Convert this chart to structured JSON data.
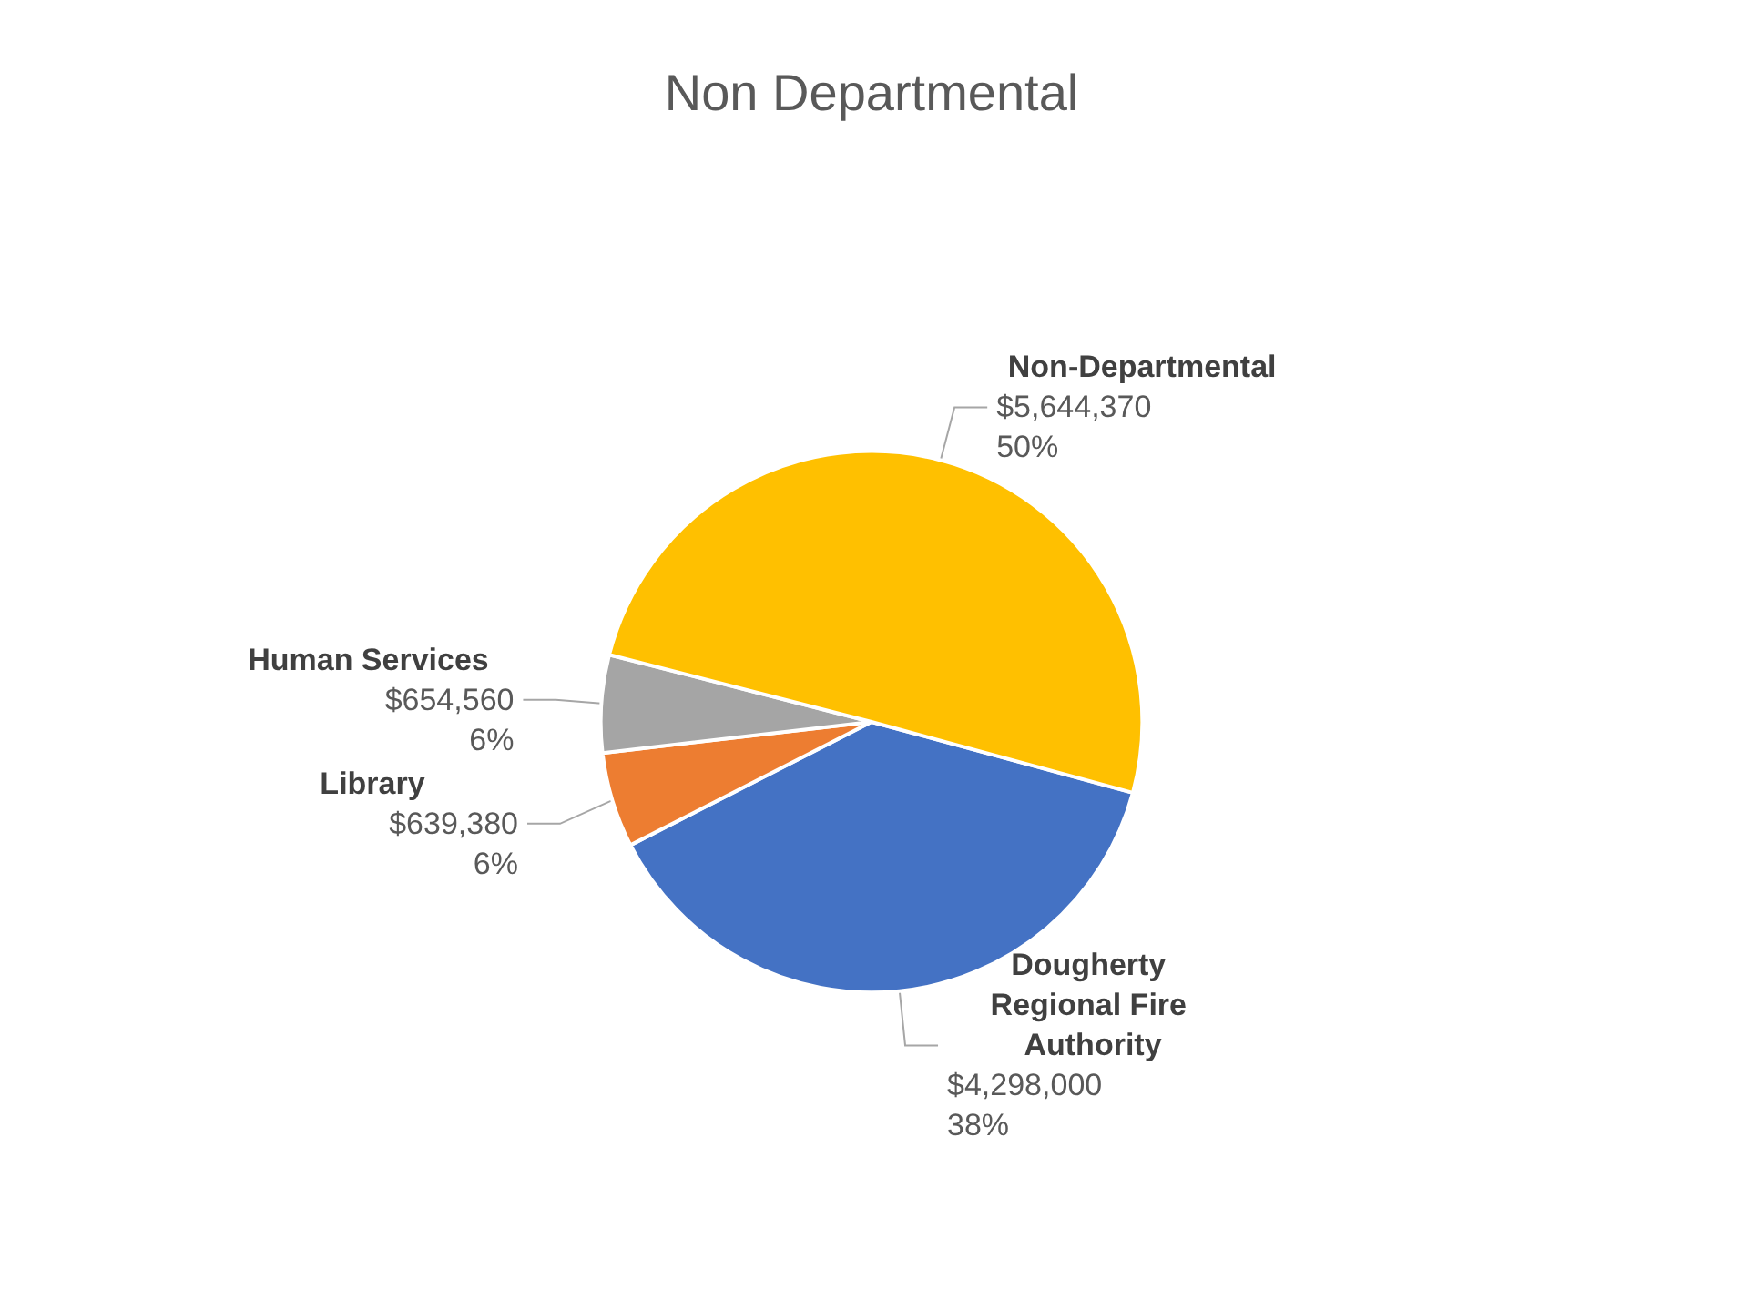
{
  "chart_data": {
    "type": "pie",
    "title": "Non Departmental",
    "categories": [
      "Dougherty Regional Fire Authority",
      "Library",
      "Human Services",
      "Non-Departmental"
    ],
    "values": [
      4298000,
      639380,
      654560,
      5644370
    ],
    "colors": [
      "#4472c4",
      "#ed7d31",
      "#a5a5a5",
      "#ffc000"
    ],
    "value_labels": [
      "$4,298,000\n38%",
      "$639,380\n6%",
      "$654,560\n6%",
      "$5,644,370\n50%"
    ],
    "legend": false
  }
}
